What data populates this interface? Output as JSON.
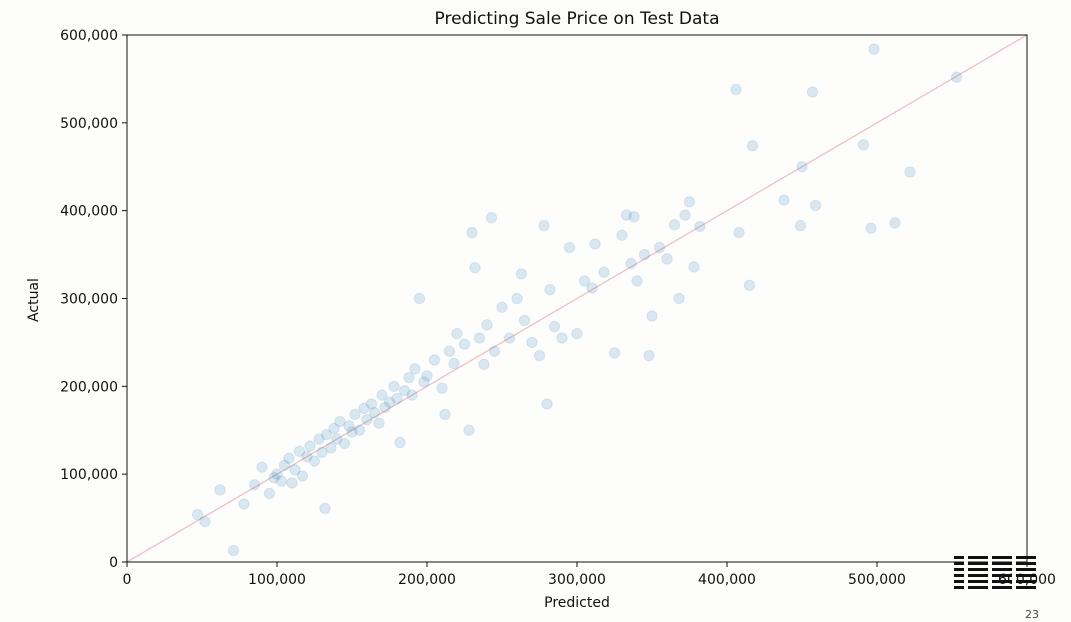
{
  "chart_data": {
    "type": "scatter",
    "title": "Predicting Sale Price on Test Data",
    "xlabel": "Predicted",
    "ylabel": "Actual",
    "xlim": [
      0,
      600000
    ],
    "ylim": [
      0,
      600000
    ],
    "xticks": [
      "0",
      "100,000",
      "200,000",
      "300,000",
      "400,000",
      "500,000",
      "600,000"
    ],
    "yticks": [
      "0",
      "100,000",
      "200,000",
      "300,000",
      "400,000",
      "500,000",
      "600,000"
    ],
    "grid": false,
    "reference_line": {
      "x": [
        0,
        600000
      ],
      "y": [
        0,
        600000
      ]
    },
    "colors": {
      "points": "#1f77b4",
      "reference_line": "#e8a0a8"
    },
    "points": [
      [
        47000,
        54000
      ],
      [
        52000,
        46000
      ],
      [
        62000,
        82000
      ],
      [
        71000,
        13000
      ],
      [
        78000,
        66000
      ],
      [
        85000,
        88000
      ],
      [
        90000,
        108000
      ],
      [
        95000,
        78000
      ],
      [
        98000,
        96000
      ],
      [
        100000,
        100000
      ],
      [
        103000,
        92000
      ],
      [
        105000,
        110000
      ],
      [
        108000,
        118000
      ],
      [
        110000,
        90000
      ],
      [
        112000,
        105000
      ],
      [
        115000,
        126000
      ],
      [
        117000,
        98000
      ],
      [
        120000,
        120000
      ],
      [
        122000,
        132000
      ],
      [
        125000,
        115000
      ],
      [
        128000,
        140000
      ],
      [
        130000,
        125000
      ],
      [
        132000,
        61000
      ],
      [
        133000,
        145000
      ],
      [
        136000,
        130000
      ],
      [
        138000,
        152000
      ],
      [
        140000,
        140000
      ],
      [
        142000,
        160000
      ],
      [
        145000,
        135000
      ],
      [
        148000,
        155000
      ],
      [
        150000,
        148000
      ],
      [
        152000,
        168000
      ],
      [
        155000,
        150000
      ],
      [
        158000,
        175000
      ],
      [
        160000,
        162000
      ],
      [
        163000,
        180000
      ],
      [
        165000,
        170000
      ],
      [
        168000,
        158000
      ],
      [
        170000,
        190000
      ],
      [
        172000,
        176000
      ],
      [
        175000,
        182000
      ],
      [
        178000,
        200000
      ],
      [
        180000,
        186000
      ],
      [
        182000,
        136000
      ],
      [
        185000,
        195000
      ],
      [
        188000,
        210000
      ],
      [
        190000,
        190000
      ],
      [
        192000,
        220000
      ],
      [
        195000,
        300000
      ],
      [
        198000,
        205000
      ],
      [
        200000,
        212000
      ],
      [
        205000,
        230000
      ],
      [
        210000,
        198000
      ],
      [
        212000,
        168000
      ],
      [
        215000,
        240000
      ],
      [
        218000,
        226000
      ],
      [
        220000,
        260000
      ],
      [
        225000,
        248000
      ],
      [
        228000,
        150000
      ],
      [
        230000,
        375000
      ],
      [
        232000,
        335000
      ],
      [
        235000,
        255000
      ],
      [
        238000,
        225000
      ],
      [
        240000,
        270000
      ],
      [
        243000,
        392000
      ],
      [
        245000,
        240000
      ],
      [
        250000,
        290000
      ],
      [
        255000,
        255000
      ],
      [
        260000,
        300000
      ],
      [
        263000,
        328000
      ],
      [
        265000,
        275000
      ],
      [
        270000,
        250000
      ],
      [
        275000,
        235000
      ],
      [
        278000,
        383000
      ],
      [
        280000,
        180000
      ],
      [
        282000,
        310000
      ],
      [
        285000,
        268000
      ],
      [
        290000,
        255000
      ],
      [
        295000,
        358000
      ],
      [
        300000,
        260000
      ],
      [
        305000,
        320000
      ],
      [
        310000,
        312000
      ],
      [
        312000,
        362000
      ],
      [
        318000,
        330000
      ],
      [
        325000,
        238000
      ],
      [
        330000,
        372000
      ],
      [
        333000,
        395000
      ],
      [
        336000,
        340000
      ],
      [
        338000,
        393000
      ],
      [
        340000,
        320000
      ],
      [
        345000,
        350000
      ],
      [
        348000,
        235000
      ],
      [
        350000,
        280000
      ],
      [
        355000,
        358000
      ],
      [
        360000,
        345000
      ],
      [
        365000,
        384000
      ],
      [
        368000,
        300000
      ],
      [
        372000,
        395000
      ],
      [
        375000,
        410000
      ],
      [
        378000,
        336000
      ],
      [
        382000,
        382000
      ],
      [
        406000,
        538000
      ],
      [
        408000,
        375000
      ],
      [
        415000,
        315000
      ],
      [
        417000,
        474000
      ],
      [
        438000,
        412000
      ],
      [
        449000,
        383000
      ],
      [
        450000,
        450000
      ],
      [
        457000,
        535000
      ],
      [
        459000,
        406000
      ],
      [
        491000,
        475000
      ],
      [
        496000,
        380000
      ],
      [
        498000,
        584000
      ],
      [
        512000,
        386000
      ],
      [
        522000,
        444000
      ],
      [
        553000,
        552000
      ]
    ]
  },
  "brand": {
    "logo": "IBM",
    "page_number": "23"
  }
}
